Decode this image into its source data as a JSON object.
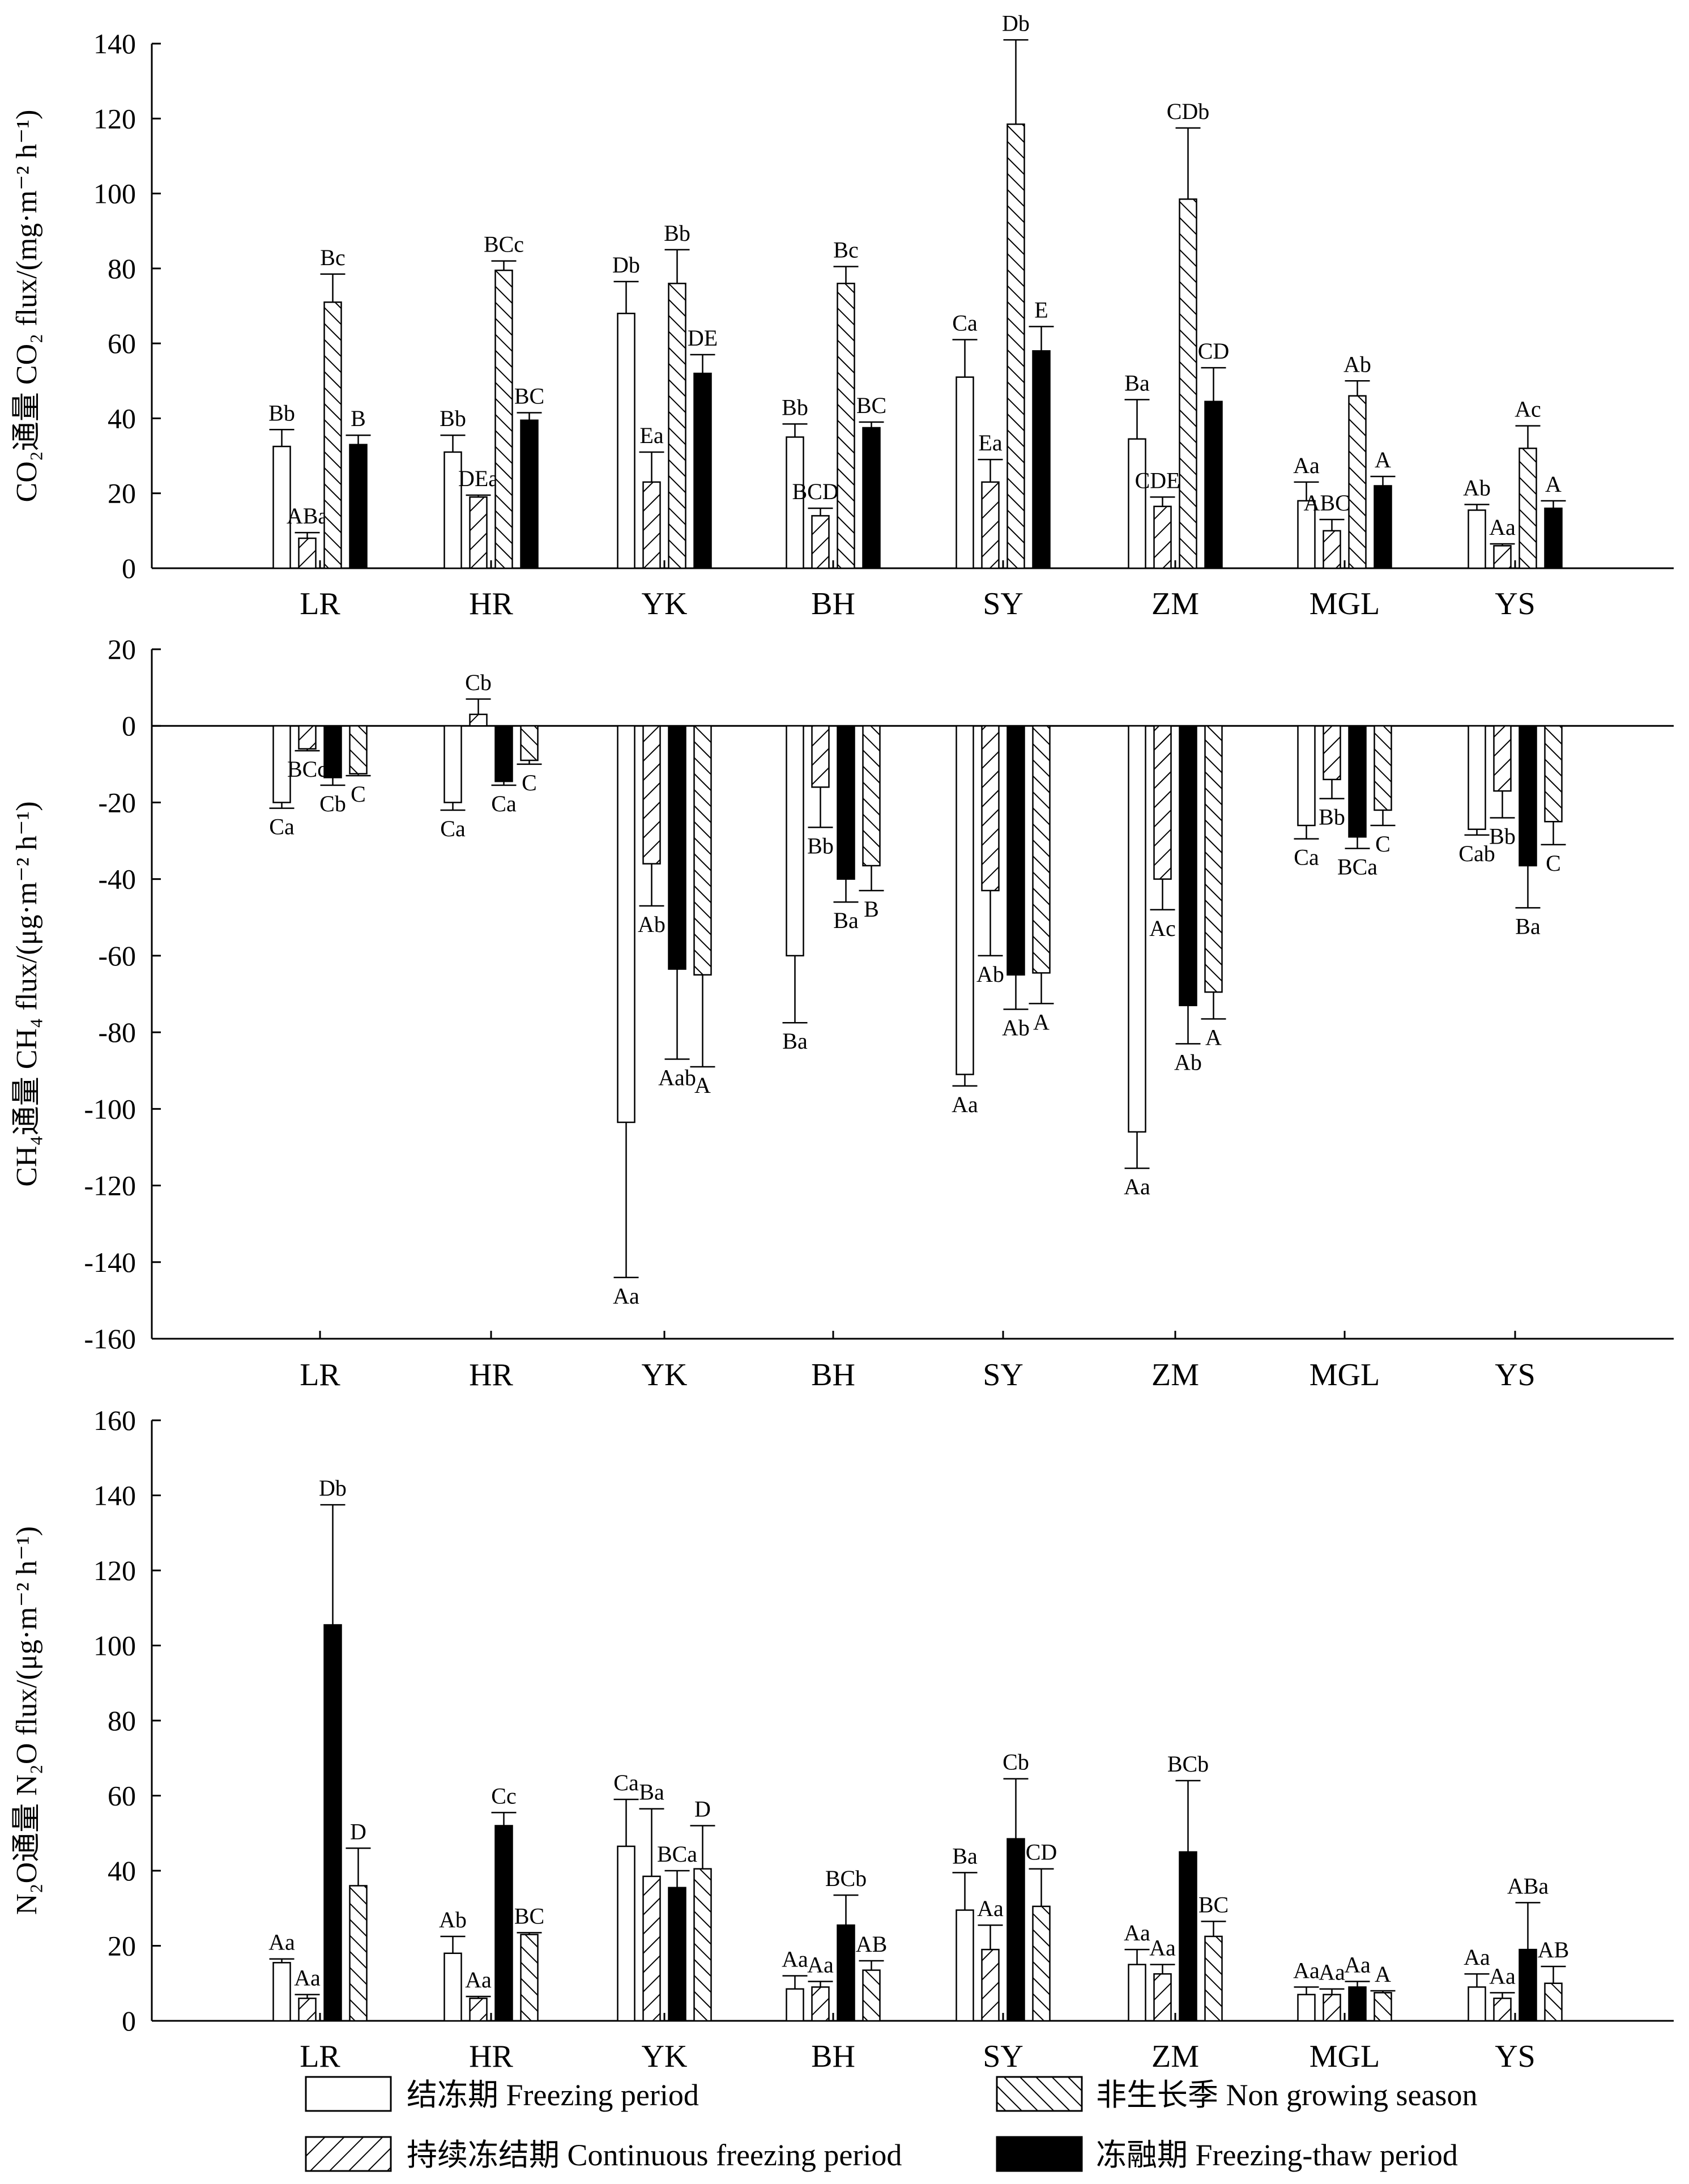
{
  "colors": {
    "axis": "#000000",
    "freezing_fill": "#ffffff",
    "thaw_fill": "#000000",
    "hatch_stroke": "#000000"
  },
  "legend": {
    "items": [
      {
        "key": "freezing",
        "label": "结冻期  Freezing period",
        "pattern": "open"
      },
      {
        "key": "non_growing",
        "label": "非生长季  Non growing season",
        "pattern": "hatch-backslash"
      },
      {
        "key": "continuous",
        "label": "持续冻结期  Continuous freezing period",
        "pattern": "hatch-slash"
      },
      {
        "key": "thaw",
        "label": "冻融期  Freezing-thaw period",
        "pattern": "solid"
      }
    ]
  },
  "chart_data": [
    {
      "type": "bar",
      "ylabel": "CO₂通量  CO₂ flux/(mg·m⁻² h⁻¹)",
      "ylim": [
        0,
        140
      ],
      "yticks": [
        "0",
        "20",
        "40",
        "60",
        "80",
        "100",
        "120",
        "140"
      ],
      "categories": [
        "LR",
        "HR",
        "YK",
        "BH",
        "SY",
        "ZM",
        "MGL",
        "YS"
      ],
      "series": [
        {
          "name": "结冻期  Freezing period",
          "key": "freezing",
          "values": [
            32.5,
            31,
            68,
            35,
            51,
            34.5,
            18,
            15.5
          ],
          "errors": [
            4.5,
            4.5,
            8.5,
            3.5,
            10,
            10.5,
            5,
            1.5
          ],
          "labels": [
            "Bb",
            "Bb",
            "Db",
            "Bb",
            "Ca",
            "Ba",
            "Aa",
            "Ab"
          ]
        },
        {
          "name": "持续冻结期  Continuous freezing period",
          "key": "continuous",
          "values": [
            8,
            19,
            23,
            14,
            23,
            16.5,
            10,
            6
          ],
          "errors": [
            1.5,
            0.5,
            8,
            2,
            6,
            2.5,
            3,
            0.5
          ],
          "labels": [
            "ABa",
            "DEa",
            "Ea",
            "BCDa",
            "Ea",
            "CDEa",
            "ABCa",
            "Aa"
          ]
        },
        {
          "name": "非生长季  Non growing season",
          "key": "non_growing",
          "values": [
            71,
            79.5,
            76,
            76,
            118.5,
            98.5,
            46,
            32
          ],
          "errors": [
            7.5,
            2.5,
            9,
            4.5,
            22.5,
            19,
            4,
            6
          ],
          "labels": [
            "Bc",
            "BCc",
            "Bb",
            "Bc",
            "Db",
            "CDb",
            "Ab",
            "Ac"
          ]
        },
        {
          "name": "冻融期  Freezing-thaw period",
          "key": "thaw",
          "values": [
            33,
            39.5,
            52,
            37.5,
            58,
            44.5,
            22,
            16
          ],
          "errors": [
            2.5,
            2,
            5,
            1.5,
            6.5,
            9,
            2.5,
            2
          ],
          "labels": [
            "B",
            "BC",
            "DE",
            "BC",
            "E",
            "CD",
            "A",
            "A"
          ]
        }
      ]
    },
    {
      "type": "bar",
      "ylabel": "CH₄通量  CH₄ flux/(μg·m⁻² h⁻¹)",
      "ylim": [
        -160,
        20
      ],
      "yticks": [
        "-160",
        "-140",
        "-120",
        "-100",
        "-80",
        "-60",
        "-40",
        "-20",
        "0",
        "20"
      ],
      "categories": [
        "LR",
        "HR",
        "YK",
        "BH",
        "SY",
        "ZM",
        "MGL",
        "YS"
      ],
      "series": [
        {
          "name": "结冻期  Freezing period",
          "key": "freezing",
          "values": [
            -20,
            -20,
            -103.5,
            -60,
            -91,
            -106,
            -26,
            -27
          ],
          "errors": [
            1.5,
            2,
            40.5,
            17.5,
            3,
            9.5,
            3.5,
            1.5
          ],
          "labels": [
            "Ca",
            "Ca",
            "Aa",
            "Ba",
            "Aa",
            "Aa",
            "Ca",
            "Cab"
          ]
        },
        {
          "name": "持续冻结期  Continuous freezing period",
          "key": "continuous",
          "values": [
            -6,
            3,
            -36,
            -16,
            -43,
            -40,
            -14,
            -17
          ],
          "errors": [
            0.5,
            4,
            11,
            10.5,
            17,
            8,
            5,
            7
          ],
          "labels": [
            "BCc",
            "Cb",
            "Ab",
            "Bb",
            "Ab",
            "Ac",
            "Bb",
            "Bb"
          ]
        },
        {
          "name": "冻融期  Freezing-thaw period",
          "key": "thaw",
          "values": [
            -13.5,
            -14.5,
            -63.5,
            -40,
            -65,
            -73,
            -29,
            -36.5
          ],
          "errors": [
            2,
            1,
            23.5,
            6,
            9,
            10,
            3,
            11
          ],
          "labels": [
            "Cb",
            "Ca",
            "Aab",
            "Ba",
            "Ab",
            "Ab",
            "BCa",
            "Ba"
          ]
        },
        {
          "name": "非生长季  Non growing season",
          "key": "non_growing",
          "values": [
            -12.5,
            -9,
            -65,
            -36.5,
            -64.5,
            -69.5,
            -22,
            -25
          ],
          "errors": [
            0.5,
            1,
            24,
            6.5,
            8,
            7,
            4,
            6
          ],
          "labels": [
            "C",
            "C",
            "A",
            "B",
            "A",
            "A",
            "C",
            "C"
          ]
        }
      ]
    },
    {
      "type": "bar",
      "ylabel": "N₂O通量  N₂O flux/(μg·m⁻² h⁻¹)",
      "ylim": [
        0,
        160
      ],
      "yticks": [
        "0",
        "20",
        "40",
        "60",
        "80",
        "100",
        "120",
        "140",
        "160"
      ],
      "categories": [
        "LR",
        "HR",
        "YK",
        "BH",
        "SY",
        "ZM",
        "MGL",
        "YS"
      ],
      "series": [
        {
          "name": "结冻期  Freezing period",
          "key": "freezing",
          "values": [
            15.5,
            18,
            46.5,
            8.5,
            29.5,
            15,
            7,
            9
          ],
          "errors": [
            1,
            4.5,
            12.5,
            3.5,
            10,
            4,
            2,
            3.5
          ],
          "labels": [
            "Aa",
            "Ab",
            "Ca",
            "Aa",
            "Ba",
            "Aa",
            "Aa",
            "Aa"
          ]
        },
        {
          "name": "持续冻结期  Continuous freezing period",
          "key": "continuous",
          "values": [
            6,
            6,
            38.5,
            9,
            19,
            12.5,
            7,
            6
          ],
          "errors": [
            1,
            0.5,
            18,
            1.5,
            6.5,
            2.5,
            1.5,
            1.5
          ],
          "labels": [
            "Aa",
            "Aa",
            "Ba",
            "Aa",
            "Aa",
            "Aa",
            "Aa",
            "Aa"
          ]
        },
        {
          "name": "冻融期  Freezing-thaw period",
          "key": "thaw",
          "values": [
            105.5,
            52,
            35.5,
            25.5,
            48.5,
            45,
            9,
            19
          ],
          "errors": [
            32,
            3.5,
            4.5,
            8,
            16,
            19,
            1.5,
            12.5
          ],
          "labels": [
            "Db",
            "Cc",
            "BCa",
            "BCb",
            "Cb",
            "BCb",
            "Aa",
            "ABa"
          ]
        },
        {
          "name": "非生长季  Non growing season",
          "key": "non_growing",
          "values": [
            36,
            23,
            40.5,
            13.5,
            30.5,
            22.5,
            7.5,
            10
          ],
          "errors": [
            10,
            0.5,
            11.5,
            2.5,
            10,
            4,
            0.5,
            4.5
          ],
          "labels": [
            "D",
            "BC",
            "D",
            "AB",
            "CD",
            "BC",
            "A",
            "AB"
          ]
        }
      ]
    }
  ]
}
